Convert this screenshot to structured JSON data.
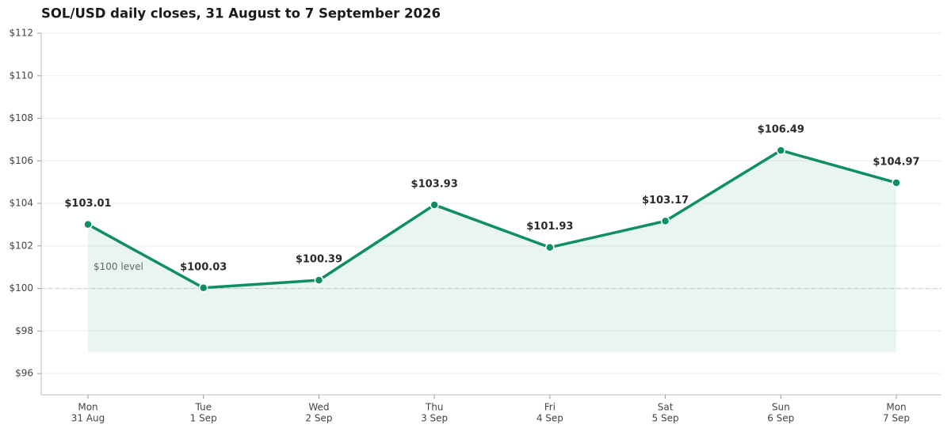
{
  "chart_data": {
    "type": "line",
    "title": "SOL/USD daily closes, 31 August to 7 September 2026",
    "categories": [
      [
        "Mon",
        "31 Aug"
      ],
      [
        "Tue",
        "1 Sep"
      ],
      [
        "Wed",
        "2 Sep"
      ],
      [
        "Thu",
        "3 Sep"
      ],
      [
        "Fri",
        "4 Sep"
      ],
      [
        "Sat",
        "5 Sep"
      ],
      [
        "Sun",
        "6 Sep"
      ],
      [
        "Mon",
        "7 Sep"
      ]
    ],
    "values": [
      103.01,
      100.03,
      100.39,
      103.93,
      101.93,
      103.17,
      106.49,
      104.97
    ],
    "value_labels": [
      "$103.01",
      "$100.03",
      "$100.39",
      "$103.93",
      "$101.93",
      "$103.17",
      "$106.49",
      "$104.97"
    ],
    "color": "#0f8f5f",
    "fill_base": 97,
    "reference_line": {
      "value": 100,
      "label": "$100 level"
    },
    "ylim": [
      95,
      112
    ],
    "yticks": [
      {
        "value": 96,
        "label": "$96"
      },
      {
        "value": 98,
        "label": "$98"
      },
      {
        "value": 100,
        "label": "$100"
      },
      {
        "value": 102,
        "label": "$102"
      },
      {
        "value": 104,
        "label": "$104"
      },
      {
        "value": 106,
        "label": "$106"
      },
      {
        "value": 108,
        "label": "$108"
      },
      {
        "value": 110,
        "label": "$110"
      },
      {
        "value": 112,
        "label": "$112"
      }
    ],
    "grid": true
  }
}
